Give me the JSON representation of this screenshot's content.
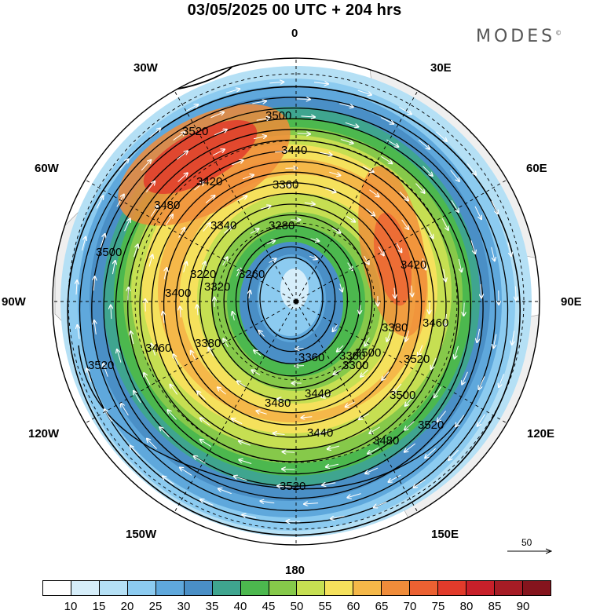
{
  "title": "03/05/2025  00 UTC  + 204 hrs",
  "brand": "MODES",
  "brand_mark": "©",
  "longitude_labels": {
    "n0": "0",
    "e30": "30E",
    "e60": "60E",
    "e90": "90E",
    "e120": "120E",
    "e150": "150E",
    "s180": "180",
    "w150": "150W",
    "w120": "120W",
    "w90": "90W",
    "w60": "60W",
    "w30": "30W"
  },
  "vector_reference": {
    "value": "50",
    "icon": "right-arrow-icon"
  },
  "colorbar": {
    "colors": [
      "#ffffff",
      "#d6eefa",
      "#b5e0f5",
      "#8ccbf0",
      "#5fa8dc",
      "#4a8fc6",
      "#3fa58f",
      "#4cb84e",
      "#86c94a",
      "#c6df52",
      "#f5e15c",
      "#f5b849",
      "#f08c3a",
      "#ec6132",
      "#e23b2b",
      "#c8202a",
      "#a61c25",
      "#85141d"
    ],
    "labels": [
      "10",
      "15",
      "20",
      "25",
      "30",
      "35",
      "40",
      "45",
      "50",
      "55",
      "60",
      "65",
      "70",
      "75",
      "80",
      "85",
      "90"
    ]
  },
  "contour_labels": [
    "3500",
    "3520",
    "3440",
    "3420",
    "3360",
    "3480",
    "3340",
    "3280",
    "3220",
    "3260",
    "3320",
    "3400",
    "3380",
    "3460",
    "3300",
    "3440",
    "3480",
    "3500",
    "3520",
    "3500",
    "3520",
    "3420",
    "3380",
    "3460",
    "3520",
    "3520",
    "3500",
    "3480",
    "3440",
    "3360",
    "3300"
  ],
  "map_params": {
    "projection": "north-polar-stereographic",
    "center": "north-pole",
    "wind_speed_units": "shaded",
    "height_contours": "geopotential"
  }
}
